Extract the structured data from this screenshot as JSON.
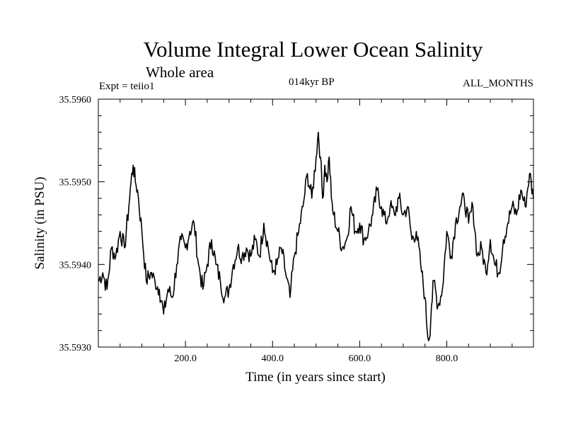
{
  "header": {
    "title": "Volume Integral Lower Ocean Salinity",
    "subtitle": "Whole area",
    "experiment": "Expt = teiio1",
    "period": "014kyr BP",
    "season": "ALL_MONTHS"
  },
  "chart_data": {
    "type": "line",
    "title": "Volume Integral Lower Ocean Salinity",
    "subtitle": "Whole area",
    "xlabel": "Time (in years since start)",
    "ylabel": "Salinity (in PSU)",
    "xlim": [
      0,
      999
    ],
    "ylim": [
      35.593,
      35.596
    ],
    "x_ticks": [
      200,
      400,
      600,
      800
    ],
    "x_tick_labels": [
      "200.0",
      "400.0",
      "600.0",
      "800.0"
    ],
    "y_ticks": [
      35.593,
      35.594,
      35.595,
      35.596
    ],
    "y_tick_labels": [
      "35.5930",
      "35.5940",
      "35.5950",
      "35.5960"
    ],
    "grid": false,
    "series": [
      {
        "color": "#000000",
        "x": [
          0,
          10,
          20,
          30,
          40,
          50,
          60,
          70,
          75,
          80,
          85,
          90,
          100,
          110,
          120,
          130,
          140,
          150,
          160,
          170,
          180,
          190,
          200,
          210,
          220,
          230,
          240,
          250,
          260,
          270,
          280,
          290,
          300,
          310,
          320,
          330,
          340,
          350,
          360,
          370,
          380,
          390,
          400,
          410,
          420,
          430,
          440,
          450,
          460,
          470,
          480,
          490,
          500,
          505,
          510,
          515,
          520,
          525,
          530,
          535,
          540,
          550,
          560,
          570,
          580,
          590,
          600,
          610,
          620,
          630,
          640,
          650,
          660,
          670,
          680,
          690,
          700,
          710,
          720,
          730,
          740,
          750,
          755,
          760,
          765,
          770,
          780,
          790,
          800,
          810,
          820,
          830,
          840,
          850,
          860,
          870,
          880,
          890,
          900,
          910,
          920,
          930,
          940,
          950,
          960,
          970,
          980,
          990,
          999
        ],
        "y": [
          35.5938,
          35.5939,
          35.5937,
          35.5942,
          35.5941,
          35.5944,
          35.5942,
          35.5947,
          35.595,
          35.5952,
          35.595,
          35.5949,
          35.5944,
          35.5938,
          35.5939,
          35.5938,
          35.5937,
          35.5934,
          35.5937,
          35.5936,
          35.594,
          35.5943,
          35.5942,
          35.5944,
          35.5945,
          35.594,
          35.5937,
          35.594,
          35.5943,
          35.594,
          35.5938,
          35.5936,
          35.5937,
          35.594,
          35.5942,
          35.5941,
          35.5942,
          35.5941,
          35.5943,
          35.5941,
          35.5945,
          35.5942,
          35.5939,
          35.594,
          35.5942,
          35.5939,
          35.5936,
          35.5941,
          35.5944,
          35.5947,
          35.5951,
          35.5948,
          35.5953,
          35.5956,
          35.5953,
          35.5948,
          35.5952,
          35.595,
          35.5953,
          35.5948,
          35.5946,
          35.5944,
          35.5942,
          35.5943,
          35.5947,
          35.5944,
          35.5945,
          35.5943,
          35.5944,
          35.5946,
          35.5949,
          35.5947,
          35.5945,
          35.5947,
          35.5946,
          35.5948,
          35.5946,
          35.5947,
          35.5943,
          35.5944,
          35.594,
          35.5936,
          35.5932,
          35.5931,
          35.5935,
          35.5938,
          35.5935,
          35.5937,
          35.5944,
          35.5941,
          35.5945,
          35.5947,
          35.5948,
          35.5945,
          35.5947,
          35.5941,
          35.5942,
          35.5939,
          35.5943,
          35.594,
          35.5939,
          35.5943,
          35.5945,
          35.5947,
          35.5946,
          35.5949,
          35.5947,
          35.5951,
          35.5948
        ]
      }
    ]
  }
}
